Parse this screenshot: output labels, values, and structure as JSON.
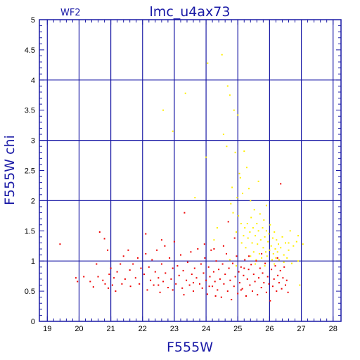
{
  "chart_data": {
    "type": "scatter",
    "title": "lmc_u4ax73",
    "subtitle": "WF2",
    "xlabel": "F555W",
    "ylabel": "F555W  chi",
    "xlim": [
      18.75,
      28.25
    ],
    "ylim": [
      0,
      5
    ],
    "x_ticks": [
      19,
      20,
      21,
      22,
      23,
      24,
      25,
      26,
      27,
      28
    ],
    "y_ticks": [
      0,
      0.5,
      1,
      1.5,
      2,
      2.5,
      3,
      3.5,
      4,
      4.5,
      5
    ],
    "y_tick_labels": [
      "0",
      "0.5",
      "1",
      "1.5",
      "2",
      "2.5",
      "3",
      "3.5",
      "4",
      "4.5",
      "5"
    ],
    "grid": true,
    "colors": {
      "axes": "#1a1aa6",
      "grid": "#1a1aa6",
      "red_series": "#ee0000",
      "yellow_series": "#ffee00"
    },
    "series": [
      {
        "color": "#ee0000",
        "points": [
          [
            19.4,
            1.28
          ],
          [
            19.9,
            0.72
          ],
          [
            19.95,
            0.66
          ],
          [
            20.15,
            0.74
          ],
          [
            20.35,
            0.66
          ],
          [
            20.45,
            0.57
          ],
          [
            20.55,
            0.95
          ],
          [
            20.6,
            0.74
          ],
          [
            20.65,
            1.48
          ],
          [
            20.75,
            0.68
          ],
          [
            20.8,
            1.37
          ],
          [
            20.82,
            0.62
          ],
          [
            20.9,
            1.18
          ],
          [
            20.92,
            0.55
          ],
          [
            20.95,
            0.78
          ],
          [
            21.0,
            0.88
          ],
          [
            21.05,
            0.6
          ],
          [
            21.1,
            0.72
          ],
          [
            21.15,
            0.5
          ],
          [
            21.2,
            0.82
          ],
          [
            21.3,
            0.95
          ],
          [
            21.35,
            0.62
          ],
          [
            21.4,
            1.08
          ],
          [
            21.45,
            0.7
          ],
          [
            21.55,
            1.18
          ],
          [
            21.6,
            0.85
          ],
          [
            21.62,
            0.58
          ],
          [
            21.7,
            0.95
          ],
          [
            21.78,
            0.72
          ],
          [
            21.85,
            1.05
          ],
          [
            21.9,
            0.62
          ],
          [
            21.95,
            0.88
          ],
          [
            22.05,
            0.78
          ],
          [
            22.1,
            1.12
          ],
          [
            22.15,
            0.52
          ],
          [
            22.2,
            0.9
          ],
          [
            22.25,
            0.68
          ],
          [
            22.3,
            1.02
          ],
          [
            22.35,
            0.6
          ],
          [
            22.4,
            0.82
          ],
          [
            22.45,
            1.18
          ],
          [
            22.5,
            0.72
          ],
          [
            22.55,
            0.48
          ],
          [
            22.6,
            0.95
          ],
          [
            22.65,
            0.66
          ],
          [
            22.7,
            1.25
          ],
          [
            22.72,
            0.8
          ],
          [
            22.8,
            0.56
          ],
          [
            22.85,
            1.05
          ],
          [
            22.9,
            0.7
          ],
          [
            22.95,
            0.88
          ],
          [
            23.0,
            1.32
          ],
          [
            23.05,
            0.62
          ],
          [
            23.1,
            0.92
          ],
          [
            23.15,
            0.76
          ],
          [
            23.2,
            1.1
          ],
          [
            23.25,
            0.55
          ],
          [
            23.28,
            0.84
          ],
          [
            23.32,
            1.8
          ],
          [
            23.38,
            0.68
          ],
          [
            23.42,
            0.98
          ],
          [
            23.48,
            0.6
          ],
          [
            23.52,
            1.15
          ],
          [
            23.55,
            0.78
          ],
          [
            23.6,
            0.5
          ],
          [
            23.64,
            0.88
          ],
          [
            23.7,
            0.72
          ],
          [
            23.74,
            1.2
          ],
          [
            23.8,
            0.62
          ],
          [
            23.84,
            0.95
          ],
          [
            23.88,
            0.55
          ],
          [
            23.92,
            0.8
          ],
          [
            23.96,
            1.05
          ],
          [
            24.0,
            0.68
          ],
          [
            24.04,
            0.45
          ],
          [
            24.08,
            0.9
          ],
          [
            24.12,
            0.74
          ],
          [
            24.16,
            1.18
          ],
          [
            24.2,
            0.58
          ],
          [
            24.24,
            0.82
          ],
          [
            24.28,
            0.66
          ],
          [
            24.32,
            1.0
          ],
          [
            24.36,
            0.52
          ],
          [
            24.4,
            0.86
          ],
          [
            24.44,
            0.7
          ],
          [
            24.48,
            0.4
          ],
          [
            24.52,
            0.95
          ],
          [
            24.56,
            0.62
          ],
          [
            24.6,
            0.78
          ],
          [
            24.64,
            1.12
          ],
          [
            24.68,
            0.5
          ],
          [
            24.72,
            0.88
          ],
          [
            24.76,
            0.68
          ],
          [
            24.8,
            0.36
          ],
          [
            24.84,
            0.96
          ],
          [
            24.88,
            0.58
          ],
          [
            24.92,
            0.74
          ],
          [
            24.96,
            1.08
          ],
          [
            25.0,
            0.46
          ],
          [
            25.03,
            0.82
          ],
          [
            25.06,
            0.64
          ],
          [
            25.1,
            0.9
          ],
          [
            25.14,
            0.54
          ],
          [
            25.18,
            0.76
          ],
          [
            25.22,
            1.02
          ],
          [
            25.26,
            0.42
          ],
          [
            25.3,
            0.7
          ],
          [
            25.34,
            0.86
          ],
          [
            25.38,
            0.6
          ],
          [
            25.42,
            0.94
          ],
          [
            25.46,
            0.5
          ],
          [
            25.5,
            0.78
          ],
          [
            25.54,
            0.66
          ],
          [
            25.58,
            1.0
          ],
          [
            25.62,
            0.44
          ],
          [
            25.66,
            0.72
          ],
          [
            25.7,
            0.88
          ],
          [
            25.74,
            0.56
          ],
          [
            25.78,
            0.8
          ],
          [
            25.82,
            0.64
          ],
          [
            25.86,
            0.96
          ],
          [
            25.9,
            0.48
          ],
          [
            25.94,
            0.74
          ],
          [
            25.98,
            0.62
          ],
          [
            26.02,
            0.34
          ],
          [
            26.06,
            0.86
          ],
          [
            26.1,
            0.58
          ],
          [
            26.14,
            0.7
          ],
          [
            26.18,
            0.92
          ],
          [
            26.22,
            0.5
          ],
          [
            26.26,
            0.76
          ],
          [
            26.3,
            0.64
          ],
          [
            26.34,
            0.84
          ],
          [
            26.38,
            0.54
          ],
          [
            26.42,
            0.72
          ],
          [
            26.46,
            0.9
          ],
          [
            26.5,
            0.6
          ],
          [
            26.54,
            0.68
          ],
          [
            26.58,
            0.48
          ],
          [
            25.75,
            1.12
          ],
          [
            25.35,
            1.08
          ],
          [
            26.25,
            1.05
          ],
          [
            24.55,
            1.25
          ],
          [
            23.95,
            1.28
          ],
          [
            24.25,
            1.2
          ],
          [
            24.7,
            1.65
          ],
          [
            22.6,
            1.35
          ],
          [
            26.35,
            2.28
          ],
          [
            22.1,
            1.45
          ],
          [
            24.9,
            1.38
          ],
          [
            25.1,
            0.52
          ],
          [
            25.2,
            0.88
          ],
          [
            24.3,
            0.42
          ],
          [
            24.1,
            0.58
          ],
          [
            23.6,
            0.64
          ],
          [
            23.3,
            0.44
          ],
          [
            22.95,
            0.52
          ],
          [
            22.5,
            0.6
          ]
        ]
      },
      {
        "color": "#ffee00",
        "points": [
          [
            22.65,
            3.5
          ],
          [
            22.95,
            3.15
          ],
          [
            23.35,
            3.78
          ],
          [
            23.65,
            2.05
          ],
          [
            24.0,
            2.72
          ],
          [
            24.05,
            4.28
          ],
          [
            24.25,
            1.35
          ],
          [
            24.35,
            1.55
          ],
          [
            24.5,
            4.42
          ],
          [
            24.55,
            3.1
          ],
          [
            24.65,
            2.9
          ],
          [
            24.68,
            3.9
          ],
          [
            24.75,
            3.75
          ],
          [
            24.78,
            1.95
          ],
          [
            24.82,
            2.22
          ],
          [
            24.85,
            1.8
          ],
          [
            24.88,
            3.5
          ],
          [
            24.92,
            2.8
          ],
          [
            24.95,
            1.48
          ],
          [
            24.98,
            2.05
          ],
          [
            25.0,
            3.42
          ],
          [
            25.02,
            1.75
          ],
          [
            25.05,
            2.45
          ],
          [
            25.08,
            2.38
          ],
          [
            25.1,
            1.62
          ],
          [
            25.12,
            1.3
          ],
          [
            25.15,
            2.12
          ],
          [
            25.18,
            1.42
          ],
          [
            25.2,
            2.82
          ],
          [
            25.22,
            1.55
          ],
          [
            25.25,
            1.22
          ],
          [
            25.28,
            2.55
          ],
          [
            25.3,
            1.62
          ],
          [
            25.32,
            1.38
          ],
          [
            25.35,
            2.2
          ],
          [
            25.38,
            1.48
          ],
          [
            25.4,
            1.08
          ],
          [
            25.42,
            1.72
          ],
          [
            25.45,
            1.3
          ],
          [
            25.48,
            1.55
          ],
          [
            25.5,
            1.15
          ],
          [
            25.52,
            1.85
          ],
          [
            25.55,
            1.42
          ],
          [
            25.58,
            1.02
          ],
          [
            25.6,
            1.62
          ],
          [
            25.62,
            1.28
          ],
          [
            25.65,
            1.5
          ],
          [
            25.68,
            1.12
          ],
          [
            25.7,
            1.78
          ],
          [
            25.72,
            1.35
          ],
          [
            25.75,
            1.05
          ],
          [
            25.78,
            1.55
          ],
          [
            25.8,
            1.22
          ],
          [
            25.82,
            1.68
          ],
          [
            25.85,
            1.4
          ],
          [
            25.88,
            1.15
          ],
          [
            25.9,
            1.5
          ],
          [
            25.92,
            1.08
          ],
          [
            25.95,
            1.32
          ],
          [
            25.98,
            1.45
          ],
          [
            26.0,
            1.18
          ],
          [
            26.02,
            1.6
          ],
          [
            26.05,
            1.25
          ],
          [
            26.08,
            1.02
          ],
          [
            26.1,
            1.38
          ],
          [
            26.12,
            1.12
          ],
          [
            26.15,
            1.48
          ],
          [
            26.18,
            1.2
          ],
          [
            26.2,
            1.05
          ],
          [
            26.22,
            1.35
          ],
          [
            26.25,
            1.15
          ],
          [
            26.28,
            1.28
          ],
          [
            26.3,
            1.02
          ],
          [
            26.35,
            1.22
          ],
          [
            26.4,
            1.4
          ],
          [
            26.45,
            1.1
          ],
          [
            26.5,
            1.3
          ],
          [
            26.55,
            1.05
          ],
          [
            26.6,
            1.18
          ],
          [
            26.65,
            1.5
          ],
          [
            26.75,
            1.25
          ],
          [
            26.85,
            1.32
          ],
          [
            26.9,
            1.42
          ],
          [
            27.05,
            1.28
          ],
          [
            25.65,
            2.32
          ],
          [
            25.9,
            1.92
          ],
          [
            25.4,
            2.0
          ],
          [
            25.55,
            0.95
          ],
          [
            25.85,
            0.92
          ],
          [
            26.15,
            0.95
          ],
          [
            26.45,
            0.98
          ],
          [
            24.95,
            0.92
          ],
          [
            24.75,
            1.02
          ],
          [
            26.7,
            0.96
          ],
          [
            26.6,
            1.3
          ],
          [
            26.9,
            1.0
          ],
          [
            26.95,
            0.6
          ]
        ]
      }
    ]
  }
}
